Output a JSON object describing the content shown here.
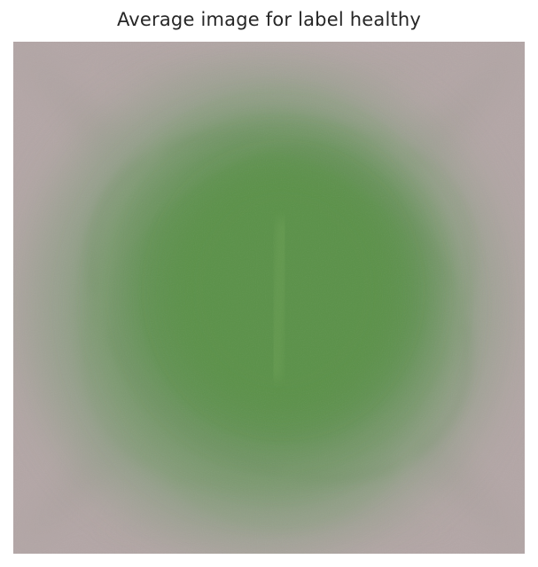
{
  "figure": {
    "title": "Average image for label healthy"
  },
  "image": {
    "subject": "averaged leaf image",
    "colors": {
      "background": "#b3a6a6",
      "leaf_outer": "#8f9f86",
      "leaf_mid": "#6f9563",
      "leaf_core": "#5a9147",
      "vein": "#7fb060"
    }
  }
}
